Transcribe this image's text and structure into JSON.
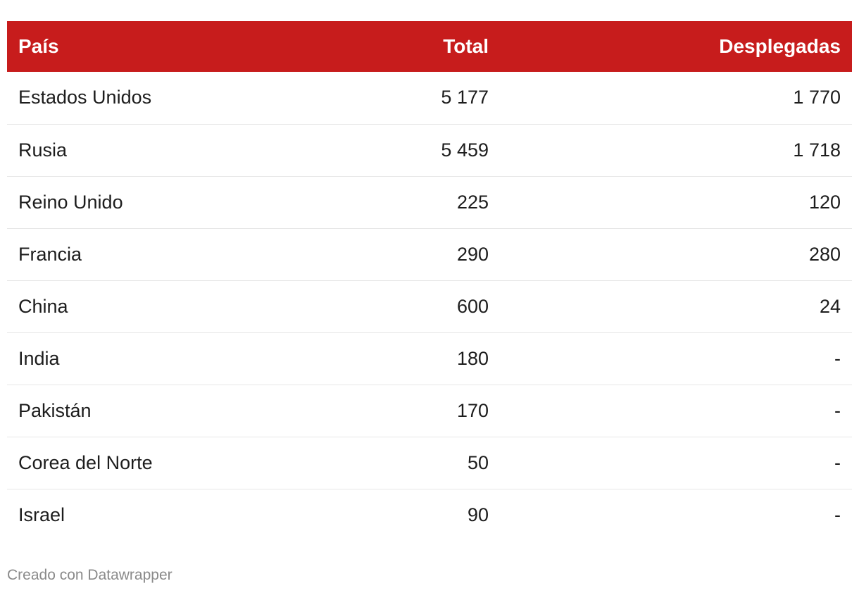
{
  "chart_data": {
    "type": "table",
    "columns": [
      "País",
      "Total",
      "Desplegadas"
    ],
    "rows": [
      {
        "pais": "Estados Unidos",
        "total": "5 177",
        "desplegadas": "1 770"
      },
      {
        "pais": "Rusia",
        "total": "5 459",
        "desplegadas": "1 718"
      },
      {
        "pais": "Reino Unido",
        "total": "225",
        "desplegadas": "120"
      },
      {
        "pais": "Francia",
        "total": "290",
        "desplegadas": "280"
      },
      {
        "pais": "China",
        "total": "600",
        "desplegadas": "24"
      },
      {
        "pais": "India",
        "total": "180",
        "desplegadas": "-"
      },
      {
        "pais": "Pakistán",
        "total": "170",
        "desplegadas": "-"
      },
      {
        "pais": "Corea del Norte",
        "total": "50",
        "desplegadas": "-"
      },
      {
        "pais": "Israel",
        "total": "90",
        "desplegadas": "-"
      }
    ]
  },
  "footer": {
    "credit": "Creado con Datawrapper"
  },
  "colors": {
    "header_bg": "#c71c1c",
    "header_text": "#ffffff",
    "row_divider": "#e6e6e6",
    "credit_text": "#8a8a8a"
  }
}
